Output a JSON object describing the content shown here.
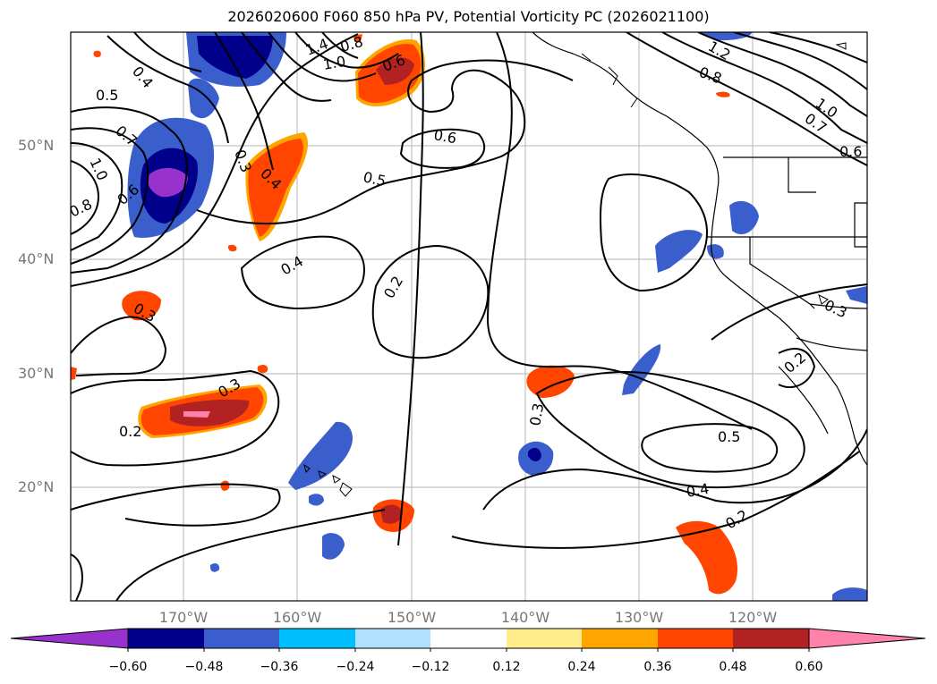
{
  "title": "2026020600 F060 850 hPa PV, Potential Vorticity PC (2026021100)",
  "lat_labels": [
    "50°N",
    "40°N",
    "30°N",
    "20°N"
  ],
  "lon_labels": [
    "170°W",
    "160°W",
    "150°W",
    "140°W",
    "130°W",
    "120°W"
  ],
  "colorbar": {
    "tick_labels": [
      "−0.60",
      "−0.48",
      "−0.36",
      "−0.24",
      "−0.12",
      "0.12",
      "0.24",
      "0.36",
      "0.48",
      "0.60"
    ],
    "colors": [
      "#9932cc",
      "#00008b",
      "#3a5fcd",
      "#00bfff",
      "#b0e2ff",
      "#ffffff",
      "#ffec8b",
      "#ffa500",
      "#ff4500",
      "#b22222",
      "#ff82ab"
    ]
  },
  "contour_labels": [
    "0.4",
    "0.5",
    "0.7",
    "1.0",
    "0.8",
    "0.6",
    "0.3",
    "0.4",
    "1.4",
    "1.0",
    "0.8",
    "0.6",
    "0.6",
    "0.5",
    "0.4",
    "0.2",
    "0.3",
    "0.3",
    "0.2",
    "0.3",
    "0.5",
    "0.4",
    "0.2",
    "1.2",
    "0.8",
    "1.0",
    "0.7",
    "0.6",
    "0.3",
    "0.2"
  ]
}
